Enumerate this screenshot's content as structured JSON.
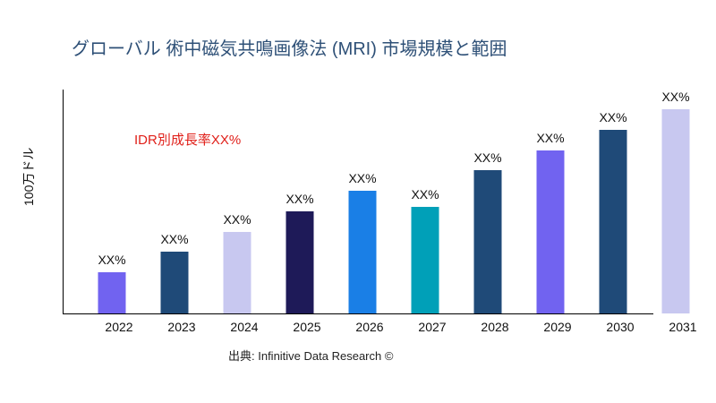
{
  "chart_data": {
    "type": "bar",
    "title": "グローバル 術中磁気共鳴画像法 (MRI) 市場規模と範囲",
    "ylabel": "100万ドル",
    "xlabel": "",
    "annotation": "IDR別成長率XX%",
    "source": "出典: Infinitive Data Research ©",
    "categories": [
      "2022",
      "2023",
      "2024",
      "2025",
      "2026",
      "2027",
      "2028",
      "2029",
      "2030",
      "2031"
    ],
    "values": [
      46,
      69,
      91,
      114,
      137,
      119,
      160,
      182,
      205,
      228
    ],
    "data_labels": [
      "XX%",
      "XX%",
      "XX%",
      "XX%",
      "XX%",
      "XX%",
      "XX%",
      "XX%",
      "XX%",
      "XX%"
    ],
    "colors": [
      "#7163f0",
      "#1f4a78",
      "#c8c8f0",
      "#1e1a58",
      "#1a7fe6",
      "#00a0b8",
      "#1f4a78",
      "#7163f0",
      "#1f4a78",
      "#c8c8f0"
    ],
    "ylim": [
      0,
      230
    ],
    "grid": false,
    "legend": "none"
  }
}
